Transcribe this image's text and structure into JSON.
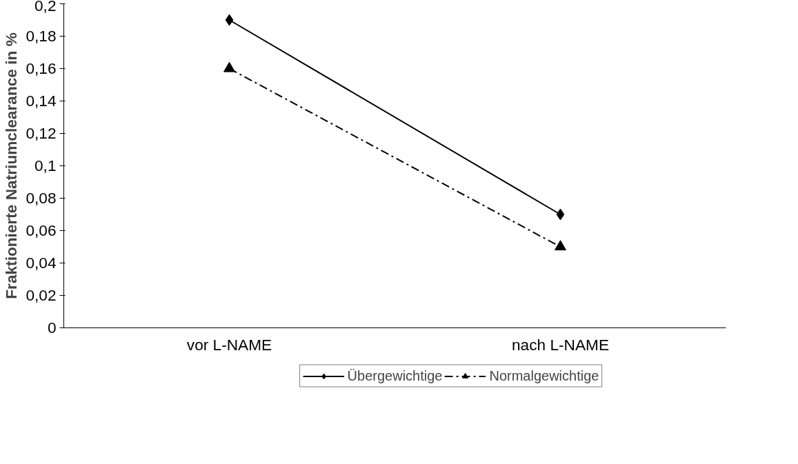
{
  "chart_data": {
    "type": "line",
    "ylabel": "Fraktionierte Natriumclearance in %",
    "categories": [
      "vor L-NAME",
      "nach L-NAME"
    ],
    "series": [
      {
        "name": "Übergewichtige",
        "color": "#000000",
        "values": [
          0.19,
          0.07
        ],
        "marker": "diamond",
        "line_style": "solid"
      },
      {
        "name": "Normalgewichtige",
        "color": "#000000",
        "values": [
          0.16,
          0.05
        ],
        "marker": "triangle",
        "line_style": "dashed"
      }
    ],
    "ylim": [
      0,
      0.2
    ],
    "yticks": [
      0,
      {
        "value": 0.02,
        "label": "0,02"
      },
      {
        "value": 0.04,
        "label": "0,04"
      },
      {
        "value": 0.06,
        "label": "0,06"
      },
      {
        "value": 0.08,
        "label": "0,08"
      },
      {
        "value": 0.1,
        "label": "0,1"
      },
      {
        "value": 0.12,
        "label": "0,12"
      },
      {
        "value": 0.14,
        "label": "0,14"
      },
      {
        "value": 0.16,
        "label": "0,16"
      },
      {
        "value": 0.18,
        "label": "0,18"
      },
      {
        "value": 0.2,
        "label": "0,2"
      }
    ],
    "grid": false,
    "legend": "bottom"
  }
}
